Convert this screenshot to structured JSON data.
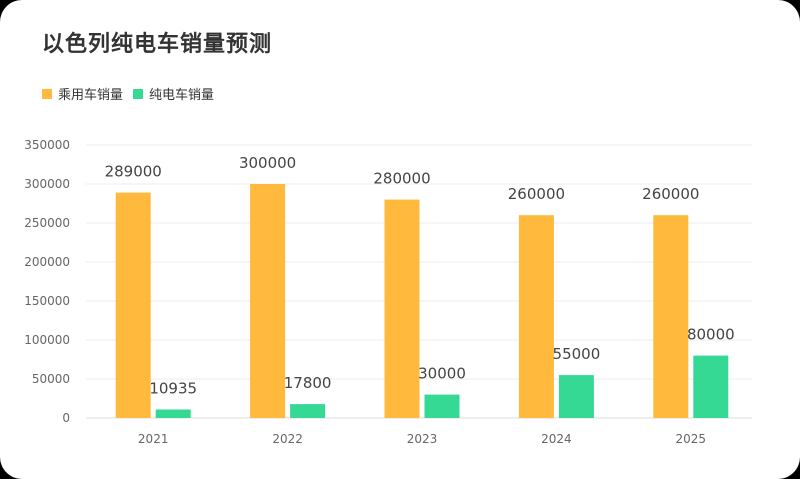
{
  "chart_data": {
    "type": "bar",
    "title": "以色列纯电车销量预测",
    "categories": [
      "2021",
      "2022",
      "2023",
      "2024",
      "2025"
    ],
    "series": [
      {
        "name": "乘用车销量",
        "color": "#FFB93C",
        "values": [
          289000,
          300000,
          280000,
          260000,
          260000
        ]
      },
      {
        "name": "纯电车销量",
        "color": "#36D994",
        "values": [
          10935,
          17800,
          30000,
          55000,
          80000
        ]
      }
    ],
    "ylim": [
      0,
      350000
    ],
    "yticks": [
      "0",
      "50000",
      "100000",
      "150000",
      "200000",
      "250000",
      "300000",
      "350000"
    ],
    "grid": true,
    "legend_position": "top-left",
    "xlabel": "",
    "ylabel": ""
  }
}
